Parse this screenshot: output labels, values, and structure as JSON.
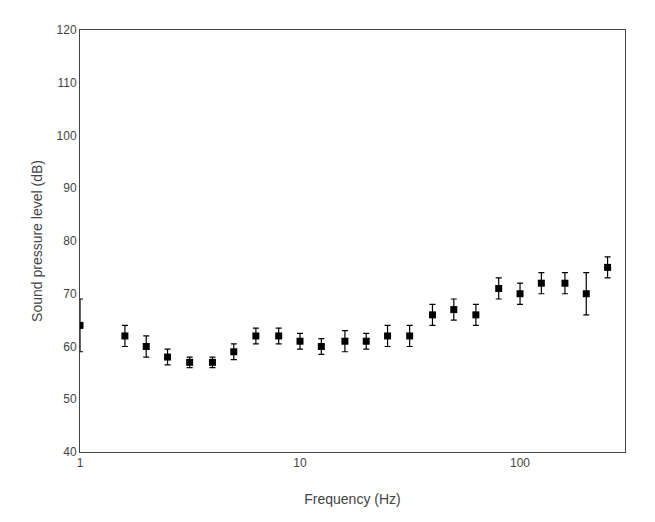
{
  "chart_data": {
    "type": "scatter",
    "xlabel": "Frequency (Hz)",
    "ylabel": "Sound pressure level (dB)",
    "x": [
      1,
      1.6,
      2,
      2.5,
      3.15,
      4,
      5,
      6.3,
      8,
      10,
      12.5,
      16,
      20,
      25,
      31.5,
      40,
      50,
      63,
      80,
      100,
      125,
      160,
      200,
      250
    ],
    "values": [
      64,
      62,
      60,
      58,
      57,
      57,
      59,
      62,
      62,
      61,
      60,
      61,
      61,
      62,
      62,
      66,
      67,
      66,
      71,
      70,
      72,
      72,
      70,
      75
    ],
    "yerr": [
      5,
      2,
      2,
      1.5,
      1,
      1,
      1.5,
      1.5,
      1.5,
      1.5,
      1.5,
      2,
      1.5,
      2,
      2,
      2,
      2,
      2,
      2,
      2,
      2,
      2,
      4,
      2
    ],
    "color": "#000000",
    "marker": "square",
    "log": "x",
    "xlim": [
      1,
      300
    ],
    "xticks": [
      1,
      10,
      100
    ],
    "ylim": [
      40,
      120
    ],
    "yticks": [
      40,
      50,
      60,
      70,
      80,
      90,
      100,
      110,
      120
    ],
    "grid": false
  }
}
